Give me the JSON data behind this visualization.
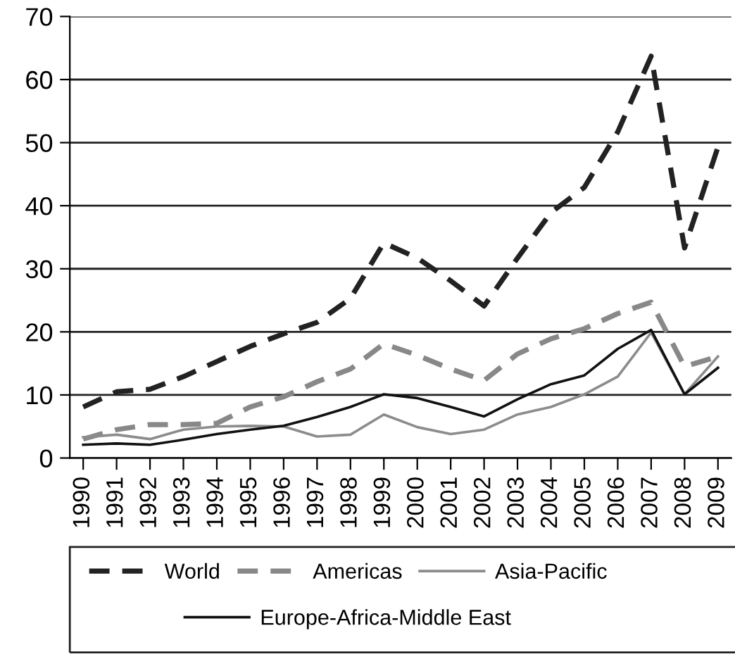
{
  "chart_data": {
    "type": "line",
    "categories": [
      "1990",
      "1991",
      "1992",
      "1993",
      "1994",
      "1995",
      "1996",
      "1997",
      "1998",
      "1999",
      "2000",
      "2001",
      "2002",
      "2003",
      "2004",
      "2005",
      "2006",
      "2007",
      "2008",
      "2009"
    ],
    "series": [
      {
        "name": "World",
        "color": "#222222",
        "line_style": "dashed",
        "values": [
          8.1,
          10.5,
          10.9,
          12.9,
          15.3,
          17.7,
          19.7,
          21.5,
          25.3,
          34.1,
          31.7,
          28.1,
          24.1,
          31.7,
          38.9,
          42.9,
          51.7,
          63.7,
          33.3,
          49.3
        ]
      },
      {
        "name": "Americas",
        "color": "#888888",
        "line_style": "dashed",
        "values": [
          3,
          4.5,
          5.3,
          5.3,
          5.5,
          8.1,
          9.7,
          12.1,
          14.1,
          18.1,
          16.3,
          14.1,
          12.3,
          16.5,
          18.9,
          20.5,
          22.9,
          24.7,
          14.5,
          16.1
        ]
      },
      {
        "name": "Asia-Pacific",
        "color": "#8c8c8c",
        "line_style": "solid",
        "values": [
          3.3,
          3.7,
          3,
          4.5,
          5,
          5.1,
          5,
          3.4,
          3.7,
          6.9,
          4.9,
          3.8,
          4.5,
          6.9,
          8.1,
          10.1,
          12.9,
          19.9,
          10.1,
          16.1
        ]
      },
      {
        "name": "Europe-Africa-Middle East",
        "color": "#111111",
        "line_style": "solid",
        "values": [
          2.1,
          2.3,
          2.1,
          2.9,
          3.8,
          4.5,
          5.1,
          6.5,
          8.1,
          10.1,
          9.5,
          8.1,
          6.6,
          9.3,
          11.7,
          13.1,
          17.3,
          20.3,
          10.1,
          14.3
        ]
      }
    ],
    "ylim": [
      0,
      70
    ],
    "yticks": [
      0,
      10,
      20,
      30,
      40,
      50,
      60,
      70
    ],
    "grid": "y",
    "legend": "bottom",
    "marker": "none"
  }
}
